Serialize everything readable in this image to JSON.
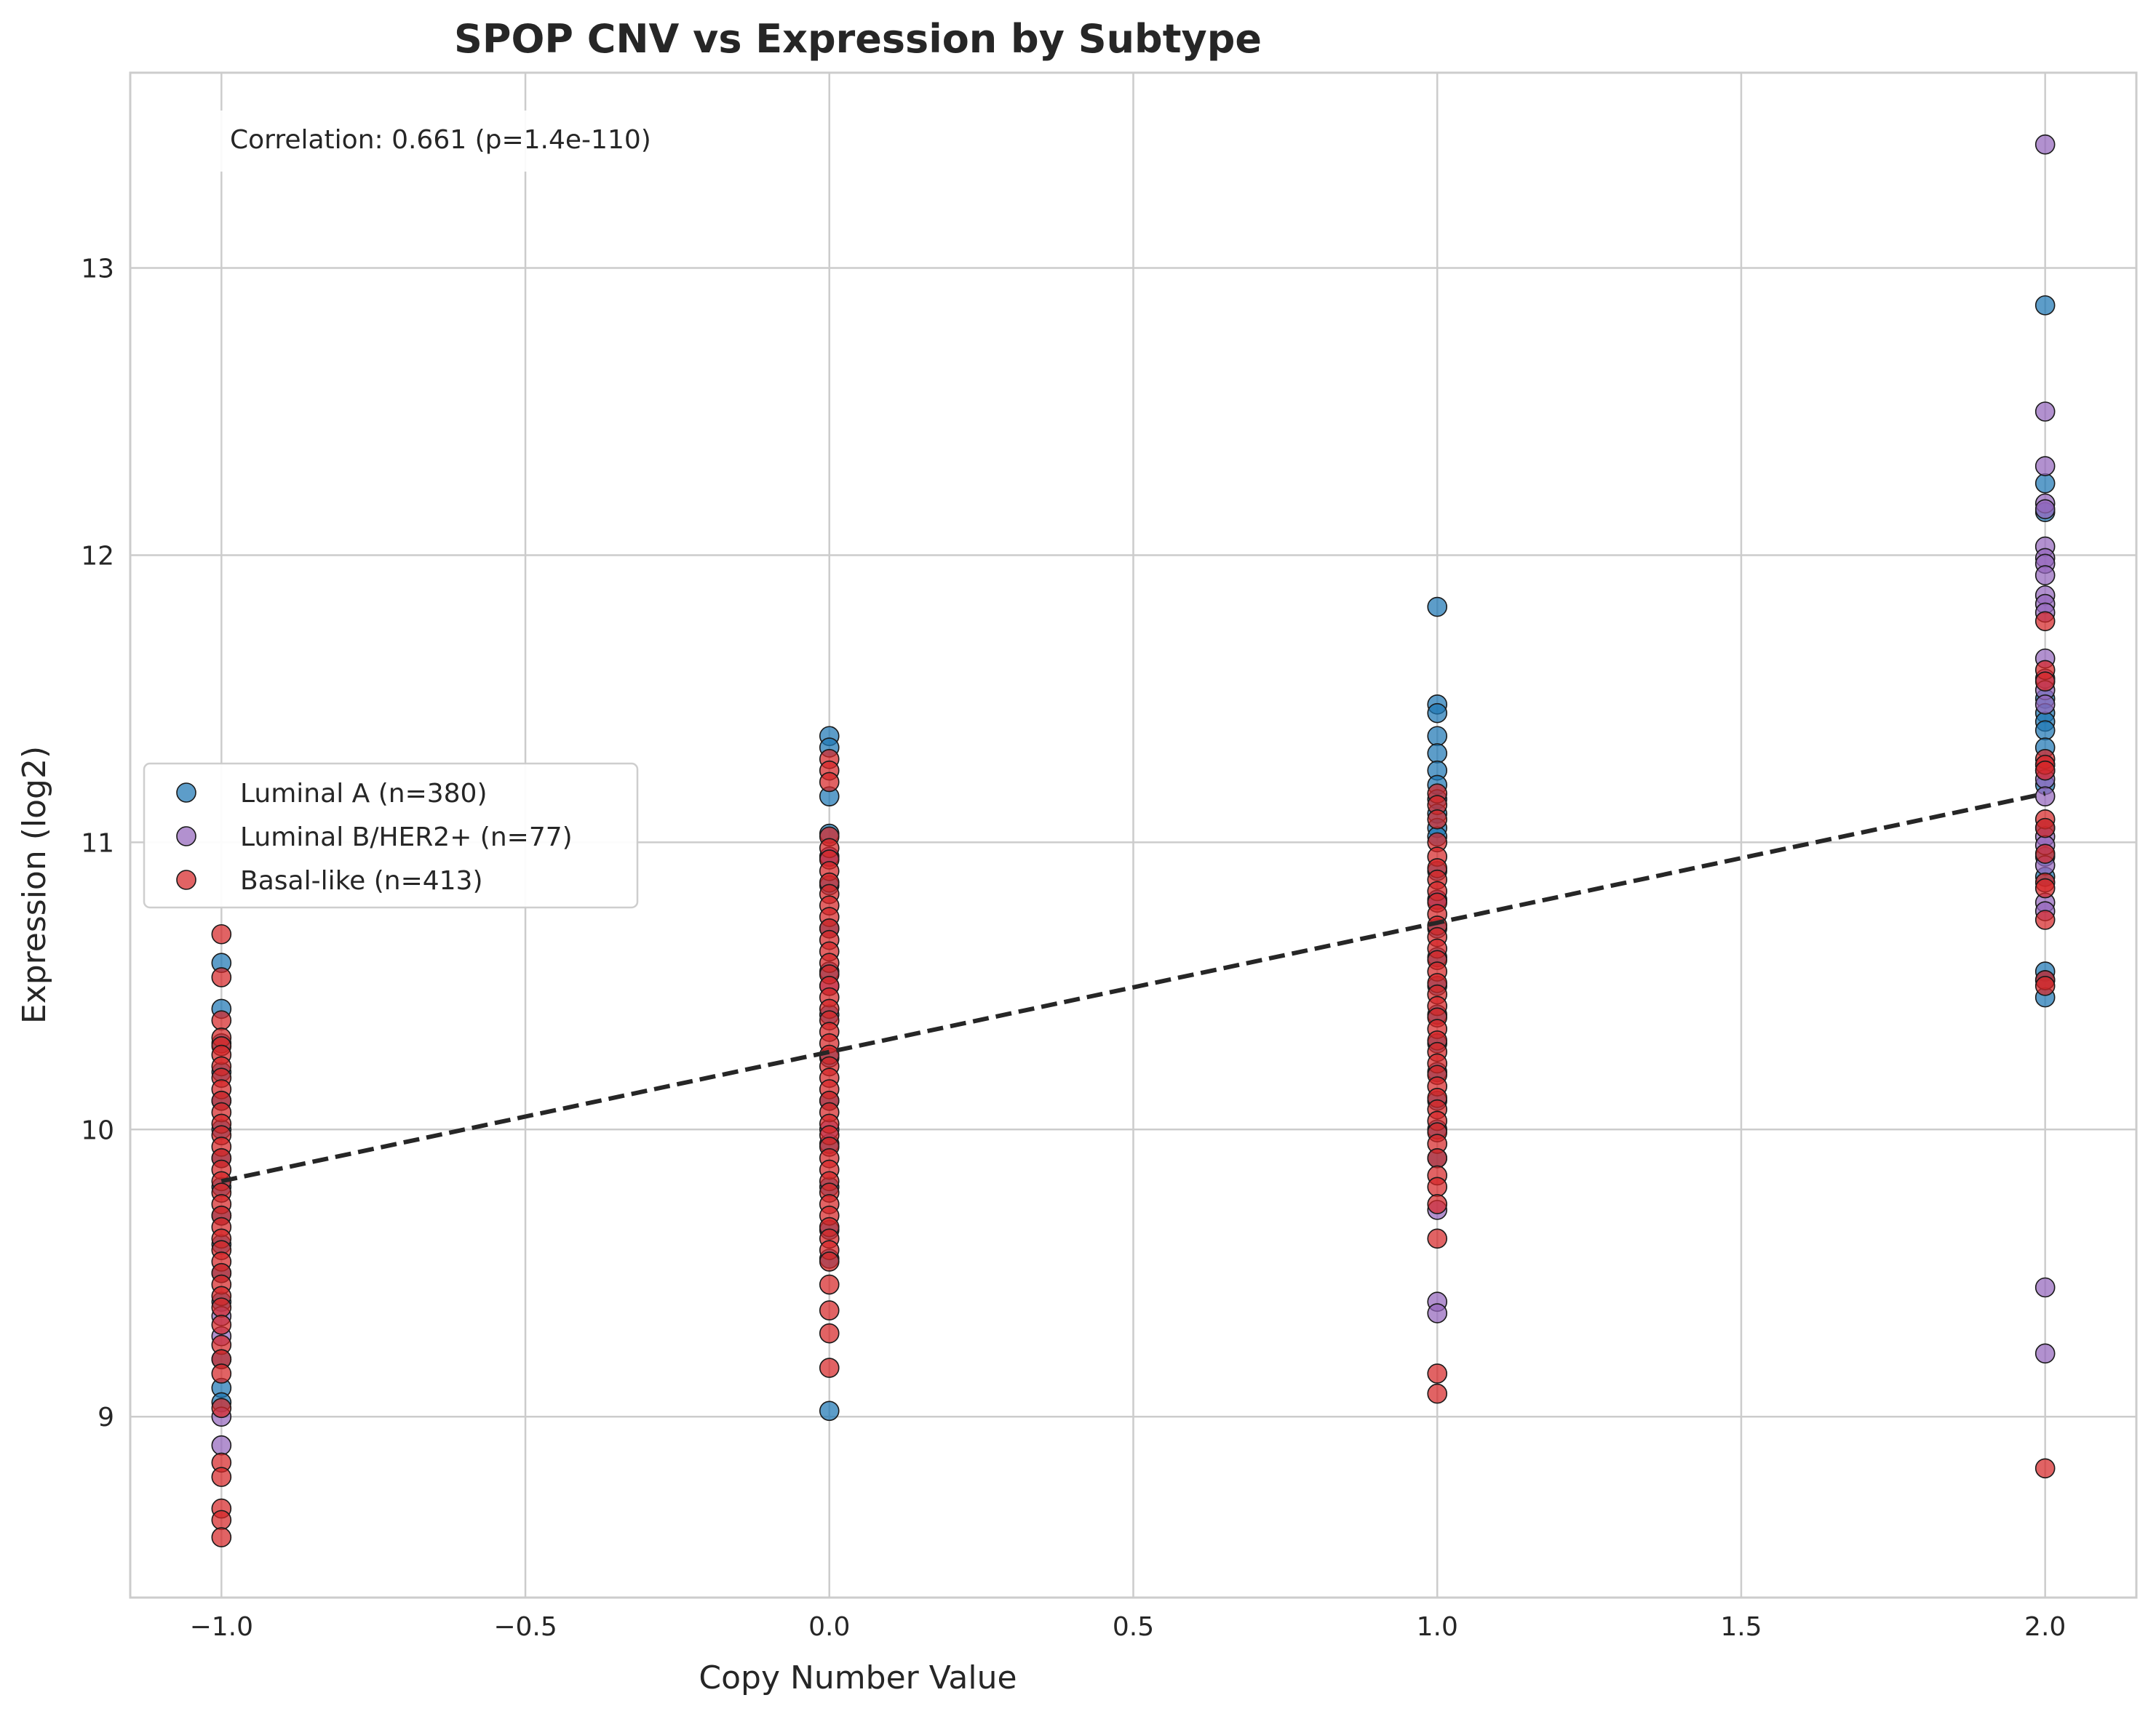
{
  "chart_data": {
    "type": "scatter",
    "title": "SPOP CNV vs Expression by Subtype",
    "xlabel": "Copy Number Value",
    "ylabel": "Expression (log2)",
    "xlim": [
      -1.15,
      2.15
    ],
    "ylim": [
      8.37,
      13.68
    ],
    "xticks": [
      -1.0,
      -0.5,
      0.0,
      0.5,
      1.0,
      1.5,
      2.0
    ],
    "xtick_labels": [
      "−1.0",
      "−0.5",
      "0.0",
      "0.5",
      "1.0",
      "1.5",
      "2.0"
    ],
    "yticks": [
      9,
      10,
      11,
      12,
      13
    ],
    "ytick_labels": [
      "9",
      "10",
      "11",
      "12",
      "13"
    ],
    "grid": true,
    "legend_position": "center-left",
    "annotation": "Correlation: 0.661 (p=1.4e-110)",
    "trend_line": {
      "x": [
        -1.0,
        2.0
      ],
      "y": [
        9.82,
        11.17
      ],
      "color": "#262626",
      "style": "dashed"
    },
    "series": [
      {
        "name": "Luminal A (n=380)",
        "color": "#1f77b4",
        "points": [
          [
            -1,
            10.58
          ],
          [
            -1,
            10.42
          ],
          [
            -1,
            10.3
          ],
          [
            -1,
            10.2
          ],
          [
            -1,
            10.1
          ],
          [
            -1,
            10.0
          ],
          [
            -1,
            9.9
          ],
          [
            -1,
            9.8
          ],
          [
            -1,
            9.7
          ],
          [
            -1,
            9.6
          ],
          [
            -1,
            9.5
          ],
          [
            -1,
            9.4
          ],
          [
            -1,
            9.2
          ],
          [
            -1,
            9.1
          ],
          [
            -1,
            9.05
          ],
          [
            0,
            11.37
          ],
          [
            0,
            11.33
          ],
          [
            0,
            11.16
          ],
          [
            0,
            11.03
          ],
          [
            0,
            10.95
          ],
          [
            0,
            10.85
          ],
          [
            0,
            10.7
          ],
          [
            0,
            10.55
          ],
          [
            0,
            10.4
          ],
          [
            0,
            10.25
          ],
          [
            0,
            10.1
          ],
          [
            0,
            9.95
          ],
          [
            0,
            9.8
          ],
          [
            0,
            9.65
          ],
          [
            0,
            9.55
          ],
          [
            0,
            9.02
          ],
          [
            1,
            11.82
          ],
          [
            1,
            11.48
          ],
          [
            1,
            11.45
          ],
          [
            1,
            11.37
          ],
          [
            1,
            11.31
          ],
          [
            1,
            11.25
          ],
          [
            1,
            11.2
          ],
          [
            1,
            11.15
          ],
          [
            1,
            11.1
          ],
          [
            1,
            11.05
          ],
          [
            1,
            11.02
          ],
          [
            1,
            10.9
          ],
          [
            1,
            10.8
          ],
          [
            1,
            10.7
          ],
          [
            1,
            10.6
          ],
          [
            1,
            10.5
          ],
          [
            1,
            10.4
          ],
          [
            1,
            10.3
          ],
          [
            1,
            10.2
          ],
          [
            1,
            10.1
          ],
          [
            1,
            10.0
          ],
          [
            1,
            9.9
          ],
          [
            2,
            12.87
          ],
          [
            2,
            12.25
          ],
          [
            2,
            12.15
          ],
          [
            2,
            11.5
          ],
          [
            2,
            11.45
          ],
          [
            2,
            11.42
          ],
          [
            2,
            11.39
          ],
          [
            2,
            11.33
          ],
          [
            2,
            11.2
          ],
          [
            2,
            11.05
          ],
          [
            2,
            10.95
          ],
          [
            2,
            10.88
          ],
          [
            2,
            10.55
          ],
          [
            2,
            10.52
          ],
          [
            2,
            10.46
          ]
        ]
      },
      {
        "name": "Luminal B/HER2+ (n=77)",
        "color": "#9467bd",
        "points": [
          [
            -1,
            9.35
          ],
          [
            -1,
            9.28
          ],
          [
            -1,
            9.0
          ],
          [
            -1,
            8.9
          ],
          [
            0,
            10.95
          ],
          [
            0,
            10.5
          ],
          [
            0,
            10.0
          ],
          [
            1,
            10.8
          ],
          [
            1,
            9.72
          ],
          [
            1,
            9.4
          ],
          [
            1,
            9.36
          ],
          [
            2,
            13.43
          ],
          [
            2,
            12.5
          ],
          [
            2,
            12.31
          ],
          [
            2,
            12.18
          ],
          [
            2,
            12.16
          ],
          [
            2,
            12.03
          ],
          [
            2,
            11.99
          ],
          [
            2,
            11.97
          ],
          [
            2,
            11.93
          ],
          [
            2,
            11.86
          ],
          [
            2,
            11.83
          ],
          [
            2,
            11.8
          ],
          [
            2,
            11.64
          ],
          [
            2,
            11.57
          ],
          [
            2,
            11.53
          ],
          [
            2,
            11.48
          ],
          [
            2,
            11.27
          ],
          [
            2,
            11.25
          ],
          [
            2,
            11.22
          ],
          [
            2,
            11.16
          ],
          [
            2,
            11.02
          ],
          [
            2,
            10.99
          ],
          [
            2,
            10.92
          ],
          [
            2,
            10.79
          ],
          [
            2,
            10.76
          ],
          [
            2,
            9.45
          ],
          [
            2,
            9.22
          ]
        ]
      },
      {
        "name": "Basal-like (n=413)",
        "color": "#d62728",
        "points": [
          [
            -1,
            10.68
          ],
          [
            -1,
            10.53
          ],
          [
            -1,
            10.38
          ],
          [
            -1,
            10.32
          ],
          [
            -1,
            10.29
          ],
          [
            -1,
            10.26
          ],
          [
            -1,
            10.22
          ],
          [
            -1,
            10.18
          ],
          [
            -1,
            10.14
          ],
          [
            -1,
            10.1
          ],
          [
            -1,
            10.06
          ],
          [
            -1,
            10.02
          ],
          [
            -1,
            9.98
          ],
          [
            -1,
            9.94
          ],
          [
            -1,
            9.9
          ],
          [
            -1,
            9.86
          ],
          [
            -1,
            9.82
          ],
          [
            -1,
            9.78
          ],
          [
            -1,
            9.74
          ],
          [
            -1,
            9.7
          ],
          [
            -1,
            9.66
          ],
          [
            -1,
            9.62
          ],
          [
            -1,
            9.58
          ],
          [
            -1,
            9.54
          ],
          [
            -1,
            9.5
          ],
          [
            -1,
            9.46
          ],
          [
            -1,
            9.42
          ],
          [
            -1,
            9.38
          ],
          [
            -1,
            9.32
          ],
          [
            -1,
            9.25
          ],
          [
            -1,
            9.2
          ],
          [
            -1,
            9.15
          ],
          [
            -1,
            9.03
          ],
          [
            -1,
            8.84
          ],
          [
            -1,
            8.79
          ],
          [
            -1,
            8.68
          ],
          [
            -1,
            8.64
          ],
          [
            -1,
            8.58
          ],
          [
            0,
            11.29
          ],
          [
            0,
            11.25
          ],
          [
            0,
            11.21
          ],
          [
            0,
            11.02
          ],
          [
            0,
            10.98
          ],
          [
            0,
            10.94
          ],
          [
            0,
            10.9
          ],
          [
            0,
            10.86
          ],
          [
            0,
            10.82
          ],
          [
            0,
            10.78
          ],
          [
            0,
            10.74
          ],
          [
            0,
            10.7
          ],
          [
            0,
            10.66
          ],
          [
            0,
            10.62
          ],
          [
            0,
            10.58
          ],
          [
            0,
            10.54
          ],
          [
            0,
            10.5
          ],
          [
            0,
            10.46
          ],
          [
            0,
            10.42
          ],
          [
            0,
            10.38
          ],
          [
            0,
            10.34
          ],
          [
            0,
            10.3
          ],
          [
            0,
            10.26
          ],
          [
            0,
            10.22
          ],
          [
            0,
            10.18
          ],
          [
            0,
            10.14
          ],
          [
            0,
            10.1
          ],
          [
            0,
            10.06
          ],
          [
            0,
            10.02
          ],
          [
            0,
            9.98
          ],
          [
            0,
            9.94
          ],
          [
            0,
            9.9
          ],
          [
            0,
            9.86
          ],
          [
            0,
            9.82
          ],
          [
            0,
            9.78
          ],
          [
            0,
            9.74
          ],
          [
            0,
            9.7
          ],
          [
            0,
            9.66
          ],
          [
            0,
            9.62
          ],
          [
            0,
            9.58
          ],
          [
            0,
            9.54
          ],
          [
            0,
            9.46
          ],
          [
            0,
            9.37
          ],
          [
            0,
            9.29
          ],
          [
            0,
            9.17
          ],
          [
            1,
            11.17
          ],
          [
            1,
            11.13
          ],
          [
            1,
            11.08
          ],
          [
            1,
            11.0
          ],
          [
            1,
            10.95
          ],
          [
            1,
            10.91
          ],
          [
            1,
            10.87
          ],
          [
            1,
            10.83
          ],
          [
            1,
            10.79
          ],
          [
            1,
            10.75
          ],
          [
            1,
            10.71
          ],
          [
            1,
            10.67
          ],
          [
            1,
            10.63
          ],
          [
            1,
            10.59
          ],
          [
            1,
            10.55
          ],
          [
            1,
            10.51
          ],
          [
            1,
            10.47
          ],
          [
            1,
            10.43
          ],
          [
            1,
            10.39
          ],
          [
            1,
            10.35
          ],
          [
            1,
            10.31
          ],
          [
            1,
            10.27
          ],
          [
            1,
            10.23
          ],
          [
            1,
            10.19
          ],
          [
            1,
            10.15
          ],
          [
            1,
            10.11
          ],
          [
            1,
            10.07
          ],
          [
            1,
            10.03
          ],
          [
            1,
            9.99
          ],
          [
            1,
            9.95
          ],
          [
            1,
            9.9
          ],
          [
            1,
            9.84
          ],
          [
            1,
            9.8
          ],
          [
            1,
            9.74
          ],
          [
            1,
            9.62
          ],
          [
            1,
            9.15
          ],
          [
            1,
            9.08
          ],
          [
            2,
            11.77
          ],
          [
            2,
            11.6
          ],
          [
            2,
            11.56
          ],
          [
            2,
            11.29
          ],
          [
            2,
            11.27
          ],
          [
            2,
            11.25
          ],
          [
            2,
            11.08
          ],
          [
            2,
            11.05
          ],
          [
            2,
            10.96
          ],
          [
            2,
            10.86
          ],
          [
            2,
            10.84
          ],
          [
            2,
            10.73
          ],
          [
            2,
            10.52
          ],
          [
            2,
            10.5
          ],
          [
            2,
            8.82
          ]
        ]
      }
    ]
  }
}
